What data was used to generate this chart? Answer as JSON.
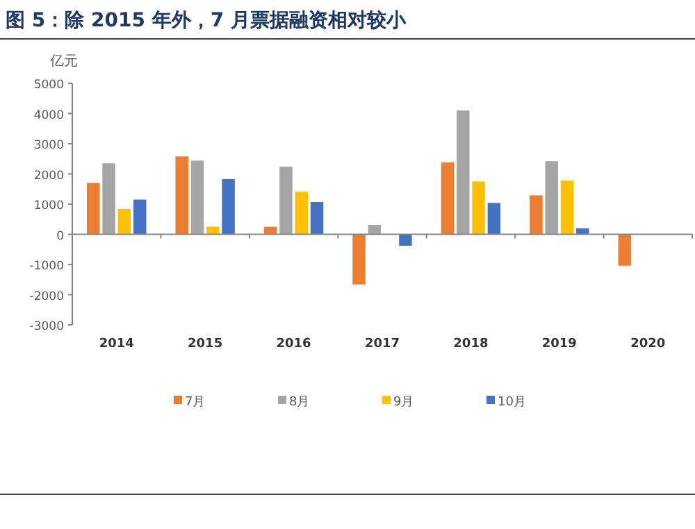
{
  "chart_data": {
    "type": "bar",
    "title": "图 5：除 2015 年外，7 月票据融资相对较小",
    "ylabel": "亿元",
    "categories": [
      "2014",
      "2015",
      "2016",
      "2017",
      "2018",
      "2019",
      "2020"
    ],
    "series": [
      {
        "name": "7月",
        "color": "#ed7d31",
        "values": [
          1700,
          2580,
          250,
          -1660,
          2380,
          1290,
          -1040
        ]
      },
      {
        "name": "8月",
        "color": "#a5a5a5",
        "values": [
          2350,
          2440,
          2240,
          310,
          4100,
          2420,
          null
        ]
      },
      {
        "name": "9月",
        "color": "#ffc000",
        "values": [
          840,
          250,
          1410,
          null,
          1750,
          1780,
          null
        ]
      },
      {
        "name": "10月",
        "color": "#4472c4",
        "values": [
          1150,
          1830,
          1070,
          -380,
          1040,
          200,
          null
        ]
      }
    ],
    "ylim": [
      -3000,
      5000
    ],
    "yticks": [
      -3000,
      -2000,
      -1000,
      0,
      1000,
      2000,
      3000,
      4000,
      5000
    ],
    "legend": "bottom"
  }
}
